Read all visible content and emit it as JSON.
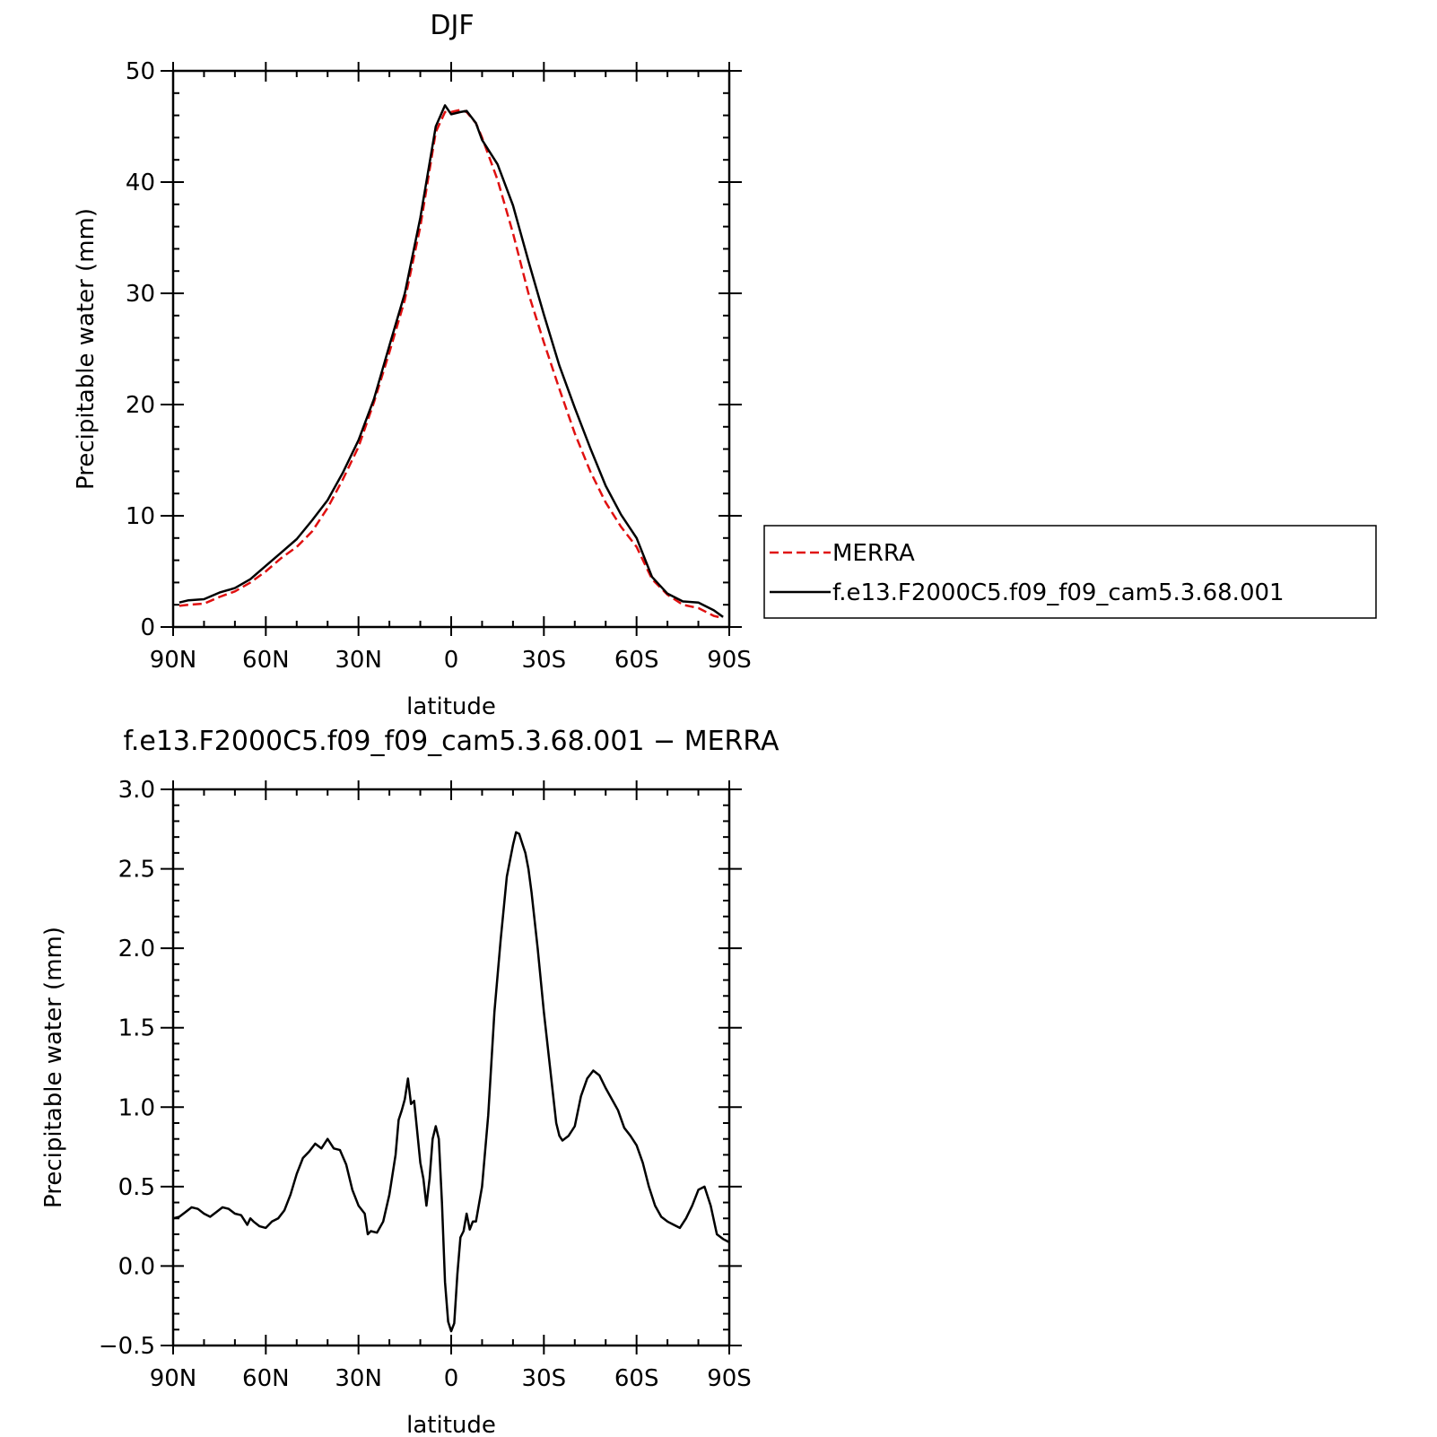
{
  "chart_data": [
    {
      "type": "line",
      "title": "DJF",
      "xlabel": "latitude",
      "ylabel": "Precipitable water (mm)",
      "xlim": [
        90,
        -90
      ],
      "ylim": [
        0,
        50
      ],
      "x_tick_values": [
        90,
        60,
        30,
        0,
        -30,
        -60,
        -90
      ],
      "x_tick_labels": [
        "90N",
        "60N",
        "30N",
        "0",
        "30S",
        "60S",
        "90S"
      ],
      "y_ticks": [
        "0",
        "10",
        "20",
        "30",
        "40",
        "50"
      ],
      "legend_position": "right",
      "series": [
        {
          "name": "MERRA",
          "color": "#e01010",
          "style": "dashed",
          "x": [
            88,
            85,
            80,
            75,
            70,
            65,
            60,
            55,
            50,
            45,
            40,
            35,
            30,
            25,
            20,
            15,
            10,
            5,
            2,
            0,
            -3,
            -5,
            -8,
            -10,
            -15,
            -20,
            -25,
            -30,
            -35,
            -40,
            -45,
            -50,
            -55,
            -60,
            -65,
            -70,
            -75,
            -80,
            -85,
            -88
          ],
          "y": [
            1.9,
            2.0,
            2.1,
            2.7,
            3.2,
            4.0,
            5.0,
            6.2,
            7.2,
            8.6,
            10.7,
            13.3,
            16.2,
            20.2,
            24.7,
            29.4,
            36.0,
            44.5,
            46.3,
            46.3,
            46.5,
            46.3,
            45.3,
            44.0,
            40.2,
            35.4,
            30.0,
            25.6,
            21.4,
            17.4,
            14.0,
            11.2,
            9.0,
            7.2,
            4.3,
            2.9,
            2.0,
            1.7,
            1.0,
            0.8
          ]
        },
        {
          "name": "f.e13.F2000C5.f09_f09_cam5.3.68.001",
          "color": "#000000",
          "style": "solid",
          "x": [
            88,
            85,
            80,
            75,
            70,
            65,
            60,
            55,
            50,
            45,
            40,
            35,
            30,
            25,
            20,
            15,
            10,
            5,
            2,
            0,
            -3,
            -5,
            -8,
            -10,
            -15,
            -20,
            -25,
            -30,
            -35,
            -40,
            -45,
            -50,
            -55,
            -60,
            -65,
            -70,
            -75,
            -80,
            -85,
            -88
          ],
          "y": [
            2.2,
            2.4,
            2.5,
            3.1,
            3.5,
            4.3,
            5.5,
            6.7,
            7.9,
            9.6,
            11.4,
            13.9,
            16.8,
            20.5,
            25.3,
            30.0,
            36.8,
            45.0,
            46.9,
            46.1,
            46.3,
            46.4,
            45.3,
            43.8,
            41.6,
            37.9,
            32.9,
            28.1,
            23.5,
            19.7,
            16.1,
            12.7,
            10.1,
            8.0,
            4.5,
            3.0,
            2.3,
            2.2,
            1.5,
            0.9
          ]
        }
      ]
    },
    {
      "type": "line",
      "title": "f.e13.F2000C5.f09_f09_cam5.3.68.001 − MERRA",
      "xlabel": "latitude",
      "ylabel": "Precipitable water (mm)",
      "xlim": [
        90,
        -90
      ],
      "ylim": [
        -0.5,
        3.0
      ],
      "x_tick_values": [
        90,
        60,
        30,
        0,
        -30,
        -60,
        -90
      ],
      "x_tick_labels": [
        "90N",
        "60N",
        "30N",
        "0",
        "30S",
        "60S",
        "90S"
      ],
      "y_ticks": [
        "−0.5",
        "0.0",
        "0.5",
        "1.0",
        "1.5",
        "2.0",
        "2.5",
        "3.0"
      ],
      "series": [
        {
          "color": "#000000",
          "style": "solid",
          "x": [
            90,
            88,
            86,
            84,
            82,
            80,
            78,
            76,
            74,
            72,
            70,
            68,
            66,
            65,
            64,
            62,
            60,
            58,
            56,
            54,
            52,
            50,
            48,
            46,
            44,
            42,
            40,
            38,
            36,
            34,
            32,
            30,
            28,
            27,
            26,
            24,
            22,
            20,
            18,
            17,
            16,
            15,
            14,
            13,
            12,
            10,
            9,
            8,
            7,
            6,
            5,
            4,
            3,
            2,
            1,
            0,
            -1,
            -2,
            -3,
            -4,
            -5,
            -6,
            -7,
            -8,
            -10,
            -12,
            -14,
            -16,
            -18,
            -20,
            -21,
            -22,
            -23,
            -24,
            -25,
            -26,
            -28,
            -30,
            -32,
            -34,
            -35,
            -36,
            -38,
            -40,
            -42,
            -44,
            -46,
            -48,
            -50,
            -52,
            -54,
            -56,
            -58,
            -60,
            -62,
            -64,
            -66,
            -68,
            -70,
            -72,
            -74,
            -76,
            -78,
            -80,
            -82,
            -84,
            -86,
            -88,
            -90
          ],
          "y": [
            0.3,
            0.31,
            0.34,
            0.37,
            0.36,
            0.33,
            0.31,
            0.34,
            0.37,
            0.36,
            0.33,
            0.32,
            0.26,
            0.3,
            0.28,
            0.25,
            0.24,
            0.28,
            0.3,
            0.35,
            0.45,
            0.58,
            0.68,
            0.72,
            0.77,
            0.74,
            0.8,
            0.74,
            0.73,
            0.64,
            0.48,
            0.38,
            0.33,
            0.2,
            0.22,
            0.21,
            0.28,
            0.45,
            0.7,
            0.92,
            0.98,
            1.05,
            1.18,
            1.02,
            1.04,
            0.65,
            0.55,
            0.38,
            0.55,
            0.8,
            0.88,
            0.8,
            0.4,
            -0.1,
            -0.35,
            -0.41,
            -0.36,
            -0.05,
            0.18,
            0.22,
            0.33,
            0.23,
            0.28,
            0.28,
            0.5,
            0.95,
            1.6,
            2.05,
            2.45,
            2.65,
            2.73,
            2.72,
            2.66,
            2.6,
            2.5,
            2.35,
            2.0,
            1.6,
            1.25,
            0.9,
            0.82,
            0.79,
            0.82,
            0.88,
            1.07,
            1.18,
            1.23,
            1.2,
            1.12,
            1.05,
            0.98,
            0.87,
            0.82,
            0.76,
            0.65,
            0.5,
            0.38,
            0.31,
            0.28,
            0.26,
            0.24,
            0.3,
            0.38,
            0.48,
            0.5,
            0.38,
            0.2,
            0.17,
            0.15
          ]
        }
      ]
    }
  ]
}
